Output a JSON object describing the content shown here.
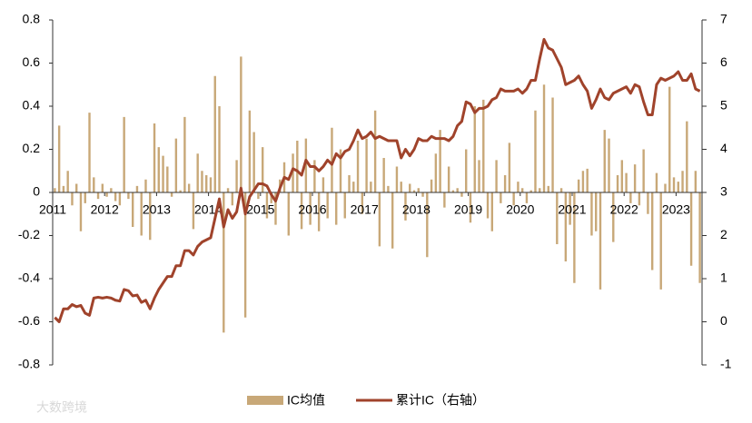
{
  "chart_data": {
    "type": "bar",
    "categories": [
      "2011",
      null,
      null,
      null,
      null,
      null,
      null,
      null,
      null,
      null,
      null,
      null,
      "2012",
      null,
      null,
      null,
      null,
      null,
      null,
      null,
      null,
      null,
      null,
      null,
      "2013",
      null,
      null,
      null,
      null,
      null,
      null,
      null,
      null,
      null,
      null,
      null,
      "2014",
      null,
      null,
      null,
      null,
      null,
      null,
      null,
      null,
      null,
      null,
      null,
      "2015",
      null,
      null,
      null,
      null,
      null,
      null,
      null,
      null,
      null,
      null,
      null,
      "2016",
      null,
      null,
      null,
      null,
      null,
      null,
      null,
      null,
      null,
      null,
      null,
      "2017",
      null,
      null,
      null,
      null,
      null,
      null,
      null,
      null,
      null,
      null,
      null,
      "2018",
      null,
      null,
      null,
      null,
      null,
      null,
      null,
      null,
      null,
      null,
      null,
      "2019",
      null,
      null,
      null,
      null,
      null,
      null,
      null,
      null,
      null,
      null,
      null,
      "2020",
      null,
      null,
      null,
      null,
      null,
      null,
      null,
      null,
      null,
      null,
      null,
      "2021",
      null,
      null,
      null,
      null,
      null,
      null,
      null,
      null,
      null,
      null,
      null,
      "2022",
      null,
      null,
      null,
      null,
      null,
      null,
      null,
      null,
      null,
      null,
      null,
      "2023",
      null,
      null,
      null,
      null,
      null
    ],
    "series": [
      {
        "name": "IC均值",
        "type": "bar",
        "color": "#c8a878",
        "values": [
          0.02,
          0.31,
          0.03,
          0.1,
          -0.06,
          0.04,
          -0.18,
          -0.05,
          0.37,
          0.07,
          -0.03,
          0.04,
          -0.02,
          0.02,
          -0.04,
          -0.06,
          0.35,
          -0.03,
          -0.16,
          0.03,
          -0.2,
          0.06,
          -0.22,
          0.32,
          0.21,
          0.17,
          0.12,
          -0.02,
          0.25,
          0.01,
          0.35,
          0.04,
          -0.17,
          0.18,
          0.1,
          0.08,
          0.07,
          0.54,
          0.4,
          -0.65,
          0.02,
          -0.06,
          0.15,
          0.63,
          -0.58,
          0.38,
          0.28,
          -0.03,
          0.21,
          -0.12,
          -0.05,
          -0.15,
          0.06,
          0.14,
          -0.2,
          0.18,
          0.24,
          -0.17,
          0.25,
          -0.15,
          0.15,
          -0.18,
          0.07,
          -0.12,
          0.3,
          -0.15,
          0.2,
          -0.12,
          0.08,
          0.05,
          0.24,
          -0.1,
          0.25,
          0.05,
          0.38,
          -0.25,
          0.16,
          0.03,
          -0.26,
          0.12,
          0.05,
          -0.13,
          0.04,
          0.01,
          0.02,
          -0.02,
          -0.3,
          0.06,
          0.18,
          0.29,
          -0.07,
          0.12,
          0.01,
          0.02,
          -0.02,
          0.2,
          -0.14,
          0.4,
          0.15,
          0.43,
          -0.12,
          -0.18,
          0.15,
          -0.05,
          0.08,
          0.23,
          -0.06,
          0.05,
          0.02,
          -0.05,
          0.01,
          0.38,
          0.02,
          0.5,
          0.03,
          0.44,
          -0.24,
          0.02,
          -0.32,
          -0.15,
          -0.42,
          0.06,
          0.1,
          0.11,
          -0.2,
          -0.18,
          -0.45,
          0.29,
          0.25,
          -0.23,
          0.08,
          0.15,
          0.09,
          -0.05,
          0.13,
          -0.06,
          0.2,
          -0.1,
          -0.36,
          0.09,
          -0.45,
          0.04,
          0.49,
          0.07,
          0.05,
          0.1,
          0.33,
          -0.34,
          0.1,
          -0.42
        ]
      },
      {
        "name": "累计IC（右轴）",
        "type": "line",
        "axis": "y2",
        "color": "#a0432b",
        "values": [
          0.1,
          0.0,
          0.3,
          0.3,
          0.4,
          0.35,
          0.38,
          0.2,
          0.15,
          0.55,
          0.57,
          0.55,
          0.57,
          0.55,
          0.5,
          0.48,
          0.75,
          0.72,
          0.6,
          0.62,
          0.45,
          0.5,
          0.3,
          0.55,
          0.75,
          0.9,
          1.05,
          1.05,
          1.3,
          1.3,
          1.65,
          1.65,
          1.55,
          1.75,
          1.85,
          1.9,
          1.95,
          2.4,
          2.85,
          2.2,
          2.6,
          2.4,
          2.55,
          3.1,
          2.5,
          2.9,
          3.05,
          3.2,
          3.2,
          3.15,
          2.95,
          2.8,
          3.1,
          3.35,
          3.3,
          3.55,
          3.5,
          3.4,
          3.75,
          3.6,
          3.6,
          3.5,
          3.6,
          3.75,
          3.65,
          3.9,
          3.8,
          3.95,
          4.0,
          4.2,
          4.45,
          4.25,
          4.3,
          4.4,
          4.25,
          4.3,
          4.25,
          4.2,
          4.2,
          4.2,
          3.8,
          4.0,
          3.85,
          4.0,
          4.25,
          4.2,
          4.2,
          4.3,
          4.25,
          4.25,
          4.25,
          4.2,
          4.3,
          4.55,
          4.65,
          5.1,
          5.05,
          4.85,
          4.95,
          4.95,
          5.0,
          5.15,
          5.2,
          5.4,
          5.35,
          5.35,
          5.35,
          5.4,
          5.3,
          5.4,
          5.6,
          5.6,
          6.1,
          6.55,
          6.35,
          6.3,
          6.1,
          5.9,
          5.5,
          5.55,
          5.6,
          5.7,
          5.5,
          5.35,
          4.95,
          5.15,
          5.4,
          5.2,
          5.15,
          5.3,
          5.35,
          5.4,
          5.45,
          5.3,
          5.5,
          5.45,
          5.1,
          4.8,
          4.8,
          5.5,
          5.65,
          5.6,
          5.65,
          5.7,
          5.8,
          5.6,
          5.6,
          5.75,
          5.4,
          5.35
        ]
      }
    ],
    "ylim": [
      -0.8,
      0.8
    ],
    "yticks": [
      -0.8,
      -0.6,
      -0.4,
      -0.2,
      0,
      0.2,
      0.4,
      0.6,
      0.8
    ],
    "y2lim": [
      -1,
      7
    ],
    "y2ticks": [
      -1,
      0,
      1,
      2,
      3,
      4,
      5,
      6,
      7
    ],
    "legend": "bottom",
    "watermark": "大数跨境"
  }
}
